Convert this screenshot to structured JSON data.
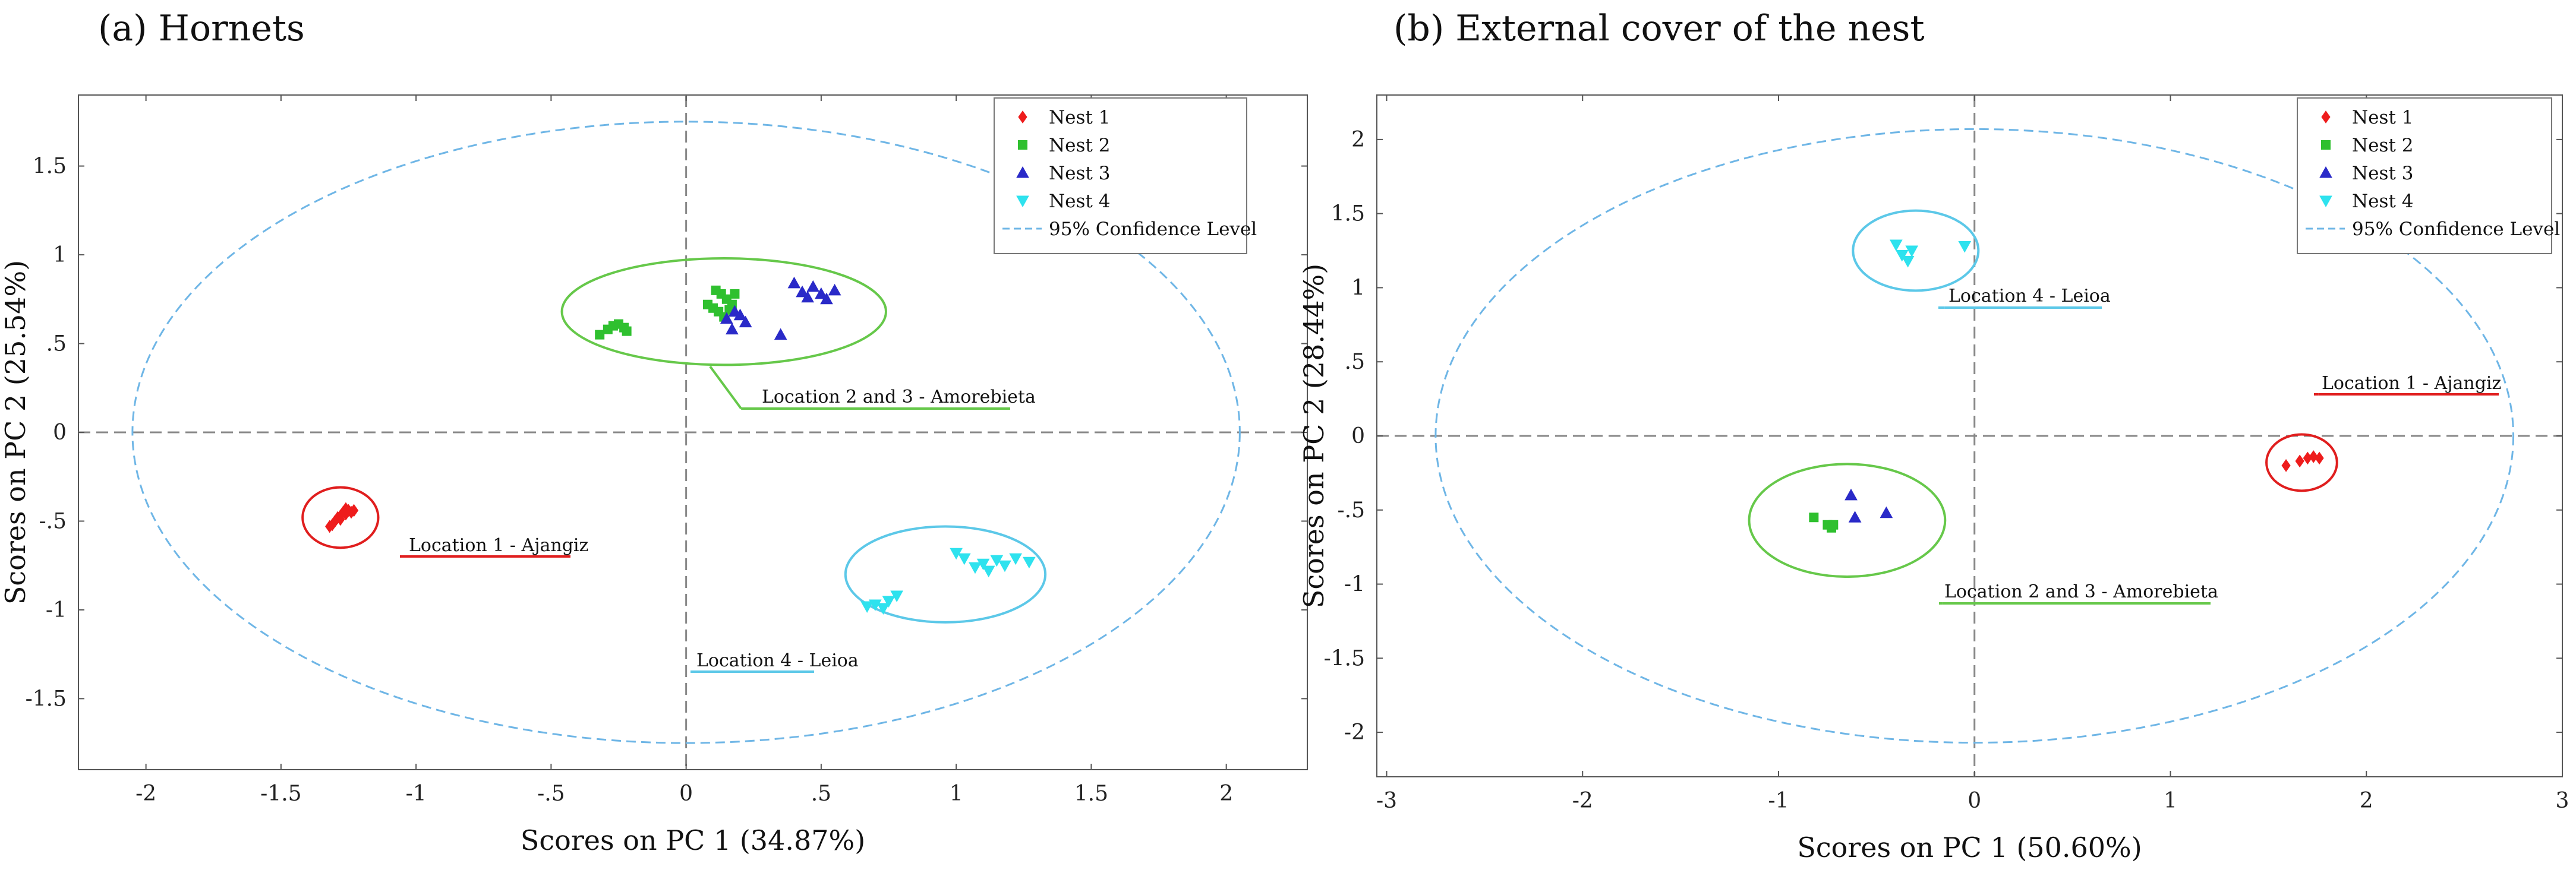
{
  "chart_data": [
    {
      "type": "scatter",
      "title": "(a) Hornets",
      "xlabel": "Scores on PC 1 (34.87%)",
      "ylabel": "Scores on PC 2 (25.54%)",
      "xlim": [
        -2.25,
        2.3
      ],
      "ylim": [
        -1.9,
        1.9
      ],
      "xticks": [
        -2,
        -1.5,
        -1,
        -0.5,
        0,
        0.5,
        1,
        1.5,
        2
      ],
      "yticks": [
        -1.5,
        -1,
        -0.5,
        0,
        0.5,
        1,
        1.5
      ],
      "grid": false,
      "legend_position": "top-right",
      "legend": [
        "Nest 1",
        "Nest 2",
        "Nest 3",
        "Nest 4",
        "95% Confidence Level"
      ],
      "confidence_ellipse": {
        "cx": 0,
        "cy": 0,
        "rx": 2.05,
        "ry": 1.75
      },
      "series": [
        {
          "name": "Nest 1",
          "marker": "diamond",
          "color": "#ee1c1c",
          "x": [
            -1.32,
            -1.3,
            -1.29,
            -1.28,
            -1.27,
            -1.26,
            -1.25,
            -1.24,
            -1.23,
            -1.31,
            -1.28,
            -1.26
          ],
          "y": [
            -0.53,
            -0.5,
            -0.48,
            -0.47,
            -0.45,
            -0.46,
            -0.44,
            -0.45,
            -0.44,
            -0.52,
            -0.49,
            -0.43
          ]
        },
        {
          "name": "Nest 2",
          "marker": "square",
          "color": "#2fc02f",
          "x": [
            -0.32,
            -0.29,
            -0.27,
            -0.25,
            -0.23,
            -0.22,
            0.08,
            0.1,
            0.12,
            0.13,
            0.15,
            0.17,
            0.18,
            0.11,
            0.14,
            0.16
          ],
          "y": [
            0.55,
            0.58,
            0.6,
            0.61,
            0.59,
            0.57,
            0.72,
            0.7,
            0.68,
            0.78,
            0.75,
            0.72,
            0.78,
            0.8,
            0.65,
            0.69
          ]
        },
        {
          "name": "Nest 3",
          "marker": "triangle",
          "color": "#2a2ac8",
          "x": [
            0.15,
            0.17,
            0.2,
            0.22,
            0.35,
            0.4,
            0.43,
            0.45,
            0.47,
            0.5,
            0.52,
            0.55,
            0.18
          ],
          "y": [
            0.64,
            0.58,
            0.66,
            0.62,
            0.55,
            0.84,
            0.79,
            0.76,
            0.82,
            0.78,
            0.75,
            0.8,
            0.68
          ]
        },
        {
          "name": "Nest 4",
          "marker": "triangle-down",
          "color": "#2ee2ee",
          "x": [
            0.67,
            0.7,
            0.73,
            0.75,
            0.78,
            1.0,
            1.03,
            1.07,
            1.1,
            1.12,
            1.15,
            1.18,
            1.22,
            1.27
          ],
          "y": [
            -0.98,
            -0.97,
            -0.99,
            -0.95,
            -0.92,
            -0.68,
            -0.71,
            -0.76,
            -0.74,
            -0.78,
            -0.72,
            -0.75,
            -0.71,
            -0.73
          ]
        }
      ],
      "annotations": [
        {
          "text": "Location 2 and 3 - Amorebieta",
          "color": "#66c84a",
          "ellipse": {
            "cx": 0.14,
            "cy": 0.68,
            "rx": 0.6,
            "ry": 0.3
          }
        },
        {
          "text": "Location 1 - Ajangiz",
          "color": "#e01e1e",
          "ellipse": {
            "cx": -1.28,
            "cy": -0.48,
            "rx": 0.14,
            "ry": 0.17
          }
        },
        {
          "text": "Location 4 - Leioa",
          "color": "#5cc8e8",
          "ellipse": {
            "cx": 0.96,
            "cy": -0.8,
            "rx": 0.37,
            "ry": 0.27
          }
        }
      ]
    },
    {
      "type": "scatter",
      "title": "(b) External cover of the nest",
      "xlabel": "Scores on PC 1 (50.60%)",
      "ylabel": "Scores on PC 2 (28.44%)",
      "xlim": [
        -3.05,
        3.0
      ],
      "ylim": [
        -2.3,
        2.3
      ],
      "xticks": [
        -3,
        -2,
        -1,
        0,
        1,
        2,
        3
      ],
      "yticks": [
        -2,
        -1.5,
        -1,
        -0.5,
        0,
        0.5,
        1,
        1.5,
        2
      ],
      "grid": false,
      "legend_position": "top-right",
      "legend": [
        "Nest 1",
        "Nest 2",
        "Nest 3",
        "Nest 4",
        "95% Confidence Level"
      ],
      "confidence_ellipse": {
        "cx": 0,
        "cy": 0,
        "rx": 2.75,
        "ry": 2.07
      },
      "series": [
        {
          "name": "Nest 1",
          "marker": "diamond",
          "color": "#ee1c1c",
          "x": [
            1.59,
            1.66,
            1.7,
            1.73,
            1.76
          ],
          "y": [
            -0.2,
            -0.17,
            -0.15,
            -0.14,
            -0.15
          ]
        },
        {
          "name": "Nest 2",
          "marker": "square",
          "color": "#2fc02f",
          "x": [
            -0.82,
            -0.75,
            -0.73,
            -0.72
          ],
          "y": [
            -0.55,
            -0.6,
            -0.62,
            -0.6
          ]
        },
        {
          "name": "Nest 3",
          "marker": "triangle",
          "color": "#2a2ac8",
          "x": [
            -0.63,
            -0.61,
            -0.45
          ],
          "y": [
            -0.4,
            -0.55,
            -0.52
          ]
        },
        {
          "name": "Nest 4",
          "marker": "triangle-down",
          "color": "#2ee2ee",
          "x": [
            -0.4,
            -0.37,
            -0.34,
            -0.32,
            -0.05
          ],
          "y": [
            1.29,
            1.22,
            1.18,
            1.25,
            1.28
          ]
        }
      ],
      "annotations": [
        {
          "text": "Location 4 - Leioa",
          "color": "#5cc8e8",
          "ellipse": {
            "cx": -0.3,
            "cy": 1.25,
            "rx": 0.32,
            "ry": 0.27
          }
        },
        {
          "text": "Location 1 - Ajangiz",
          "color": "#e01e1e",
          "ellipse": {
            "cx": 1.67,
            "cy": -0.18,
            "rx": 0.18,
            "ry": 0.19
          }
        },
        {
          "text": "Location 2 and 3 - Amorebieta",
          "color": "#66c84a",
          "ellipse": {
            "cx": -0.65,
            "cy": -0.57,
            "rx": 0.5,
            "ry": 0.38
          }
        }
      ]
    }
  ]
}
